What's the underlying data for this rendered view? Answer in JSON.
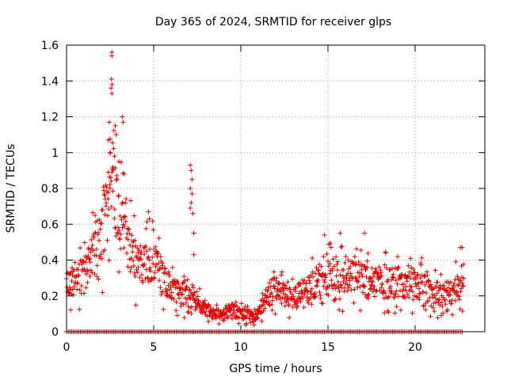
{
  "chart_data": {
    "type": "scatter",
    "title": "Day 365 of 2024, SRMTID for receiver glps",
    "xlabel": "GPS time / hours",
    "ylabel": "SRMTID / TECUs",
    "xlim": [
      0,
      24
    ],
    "ylim": [
      0,
      1.6
    ],
    "xticks": [
      0,
      5,
      10,
      15,
      20
    ],
    "xtick_labels": [
      "0",
      "5",
      "10",
      "15",
      "20"
    ],
    "yticks": [
      0,
      0.2,
      0.4,
      0.6,
      0.8,
      1.0,
      1.2,
      1.4,
      1.6
    ],
    "ytick_labels": [
      "0",
      "0.2",
      "0.4",
      "0.6",
      "0.8",
      "1",
      "1.2",
      "1.4",
      "1.6"
    ],
    "grid": true,
    "marker": "+",
    "color": "#e00000",
    "series": [
      {
        "name": "SRMTID",
        "x_range": [
          0,
          22.8
        ],
        "profile": [
          [
            0.0,
            0.27
          ],
          [
            0.5,
            0.28
          ],
          [
            1.0,
            0.32
          ],
          [
            1.5,
            0.42
          ],
          [
            2.0,
            0.55
          ],
          [
            2.3,
            0.68
          ],
          [
            2.6,
            0.9
          ],
          [
            2.9,
            0.72
          ],
          [
            3.2,
            0.62
          ],
          [
            3.6,
            0.5
          ],
          [
            4.0,
            0.38
          ],
          [
            4.5,
            0.4
          ],
          [
            5.0,
            0.38
          ],
          [
            5.5,
            0.3
          ],
          [
            6.0,
            0.25
          ],
          [
            6.5,
            0.22
          ],
          [
            7.0,
            0.2
          ],
          [
            7.5,
            0.16
          ],
          [
            8.0,
            0.12
          ],
          [
            8.5,
            0.1
          ],
          [
            9.0,
            0.1
          ],
          [
            9.5,
            0.12
          ],
          [
            10.0,
            0.1
          ],
          [
            10.5,
            0.09
          ],
          [
            11.0,
            0.1
          ],
          [
            11.5,
            0.2
          ],
          [
            12.0,
            0.25
          ],
          [
            12.5,
            0.2
          ],
          [
            13.0,
            0.18
          ],
          [
            13.5,
            0.22
          ],
          [
            14.0,
            0.25
          ],
          [
            14.5,
            0.3
          ],
          [
            15.0,
            0.3
          ],
          [
            15.5,
            0.32
          ],
          [
            16.0,
            0.3
          ],
          [
            16.5,
            0.32
          ],
          [
            17.0,
            0.28
          ],
          [
            17.5,
            0.27
          ],
          [
            18.0,
            0.28
          ],
          [
            18.5,
            0.27
          ],
          [
            19.0,
            0.28
          ],
          [
            19.5,
            0.26
          ],
          [
            20.0,
            0.25
          ],
          [
            20.5,
            0.26
          ],
          [
            21.0,
            0.22
          ],
          [
            21.5,
            0.2
          ],
          [
            22.0,
            0.22
          ],
          [
            22.5,
            0.25
          ],
          [
            22.8,
            0.32
          ]
        ],
        "spikes": [
          [
            2.6,
            1.56
          ],
          [
            2.6,
            1.54
          ],
          [
            2.58,
            1.41
          ],
          [
            2.62,
            1.38
          ],
          [
            2.6,
            1.33
          ],
          [
            2.55,
            1.36
          ],
          [
            2.45,
            1.17
          ],
          [
            2.8,
            1.15
          ],
          [
            2.85,
            1.1
          ],
          [
            3.2,
            1.2
          ],
          [
            3.25,
            1.17
          ],
          [
            2.4,
            1.07
          ],
          [
            2.5,
            1.0
          ],
          [
            2.75,
            0.98
          ],
          [
            3.0,
            0.95
          ],
          [
            2.65,
            0.92
          ],
          [
            2.4,
            0.89
          ],
          [
            3.3,
            0.88
          ],
          [
            2.2,
            0.76
          ],
          [
            3.0,
            0.76
          ],
          [
            2.5,
            0.8
          ],
          [
            7.1,
            0.93
          ],
          [
            7.15,
            0.9
          ],
          [
            7.2,
            0.85
          ],
          [
            7.1,
            0.8
          ],
          [
            7.2,
            0.77
          ],
          [
            7.15,
            0.72
          ],
          [
            7.1,
            0.69
          ],
          [
            7.25,
            0.66
          ],
          [
            7.3,
            0.55
          ],
          [
            7.3,
            0.43
          ],
          [
            4.7,
            0.67
          ],
          [
            4.75,
            0.63
          ],
          [
            15.7,
            0.55
          ],
          [
            17.1,
            0.55
          ],
          [
            14.8,
            0.54
          ],
          [
            22.6,
            0.47
          ],
          [
            22.7,
            0.47
          ]
        ],
        "zero_band": true
      }
    ]
  }
}
